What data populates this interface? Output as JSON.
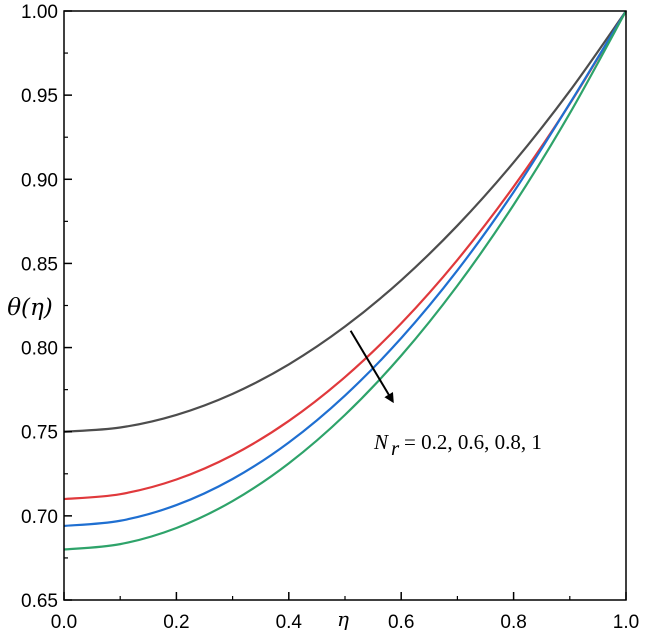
{
  "chart_data": {
    "type": "line",
    "title": "",
    "xlabel": "η",
    "ylabel": "θ(η)",
    "xlim": [
      0.0,
      1.0
    ],
    "ylim": [
      0.65,
      1.0
    ],
    "x_ticks": [
      "0.0",
      "0.2",
      "0.4",
      "0.6",
      "0.8",
      "1.0"
    ],
    "y_ticks": [
      "0.65",
      "0.70",
      "0.75",
      "0.80",
      "0.85",
      "0.90",
      "0.95",
      "1.00"
    ],
    "grid": false,
    "x": [
      0.0,
      0.1,
      0.2,
      0.3,
      0.4,
      0.5,
      0.6,
      0.7,
      0.8,
      0.9,
      1.0
    ],
    "series": [
      {
        "color": "#4d4d4d",
        "values": [
          0.75,
          0.7525,
          0.76,
          0.7725,
          0.79,
          0.8125,
          0.84,
          0.8725,
          0.91,
          0.9525,
          1.0
        ]
      },
      {
        "color": "#e0393c",
        "values": [
          0.71,
          0.7129,
          0.7216,
          0.7361,
          0.7564,
          0.7825,
          0.8144,
          0.8521,
          0.8956,
          0.9449,
          1.0
        ]
      },
      {
        "color": "#1f6fd1",
        "values": [
          0.694,
          0.6971,
          0.7064,
          0.7219,
          0.7436,
          0.7715,
          0.8056,
          0.8459,
          0.8924,
          0.9451,
          1.0
        ]
      },
      {
        "color": "#2ea36a",
        "values": [
          0.68,
          0.6832,
          0.6928,
          0.7088,
          0.7312,
          0.76,
          0.7952,
          0.8368,
          0.8848,
          0.9392,
          1.0
        ]
      }
    ],
    "annotation": {
      "symbol": "N",
      "subscript": "r",
      "text": "= 0.2, 0.6, 0.8, 1",
      "arrow_from": [
        0.51,
        0.81
      ],
      "arrow_to": [
        0.585,
        0.768
      ]
    }
  }
}
